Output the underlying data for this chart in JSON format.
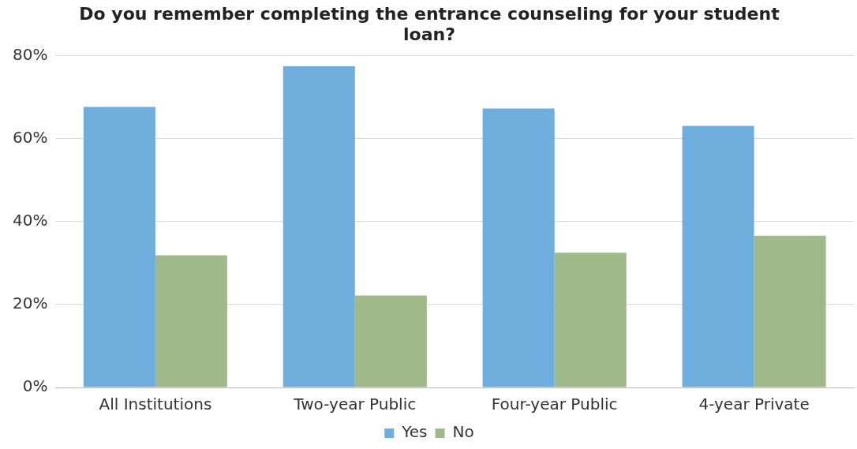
{
  "chart_data": {
    "type": "bar",
    "title": "Do you remember completing the entrance counseling for your student loan?",
    "categories": [
      "All Institutions",
      "Two-year Public",
      "Four-year Public",
      "4-year Private"
    ],
    "series": [
      {
        "name": "Yes",
        "color": "#6faddc",
        "values": [
          67.7,
          77.5,
          67.3,
          63.1
        ]
      },
      {
        "name": "No",
        "color": "#9fba88",
        "values": [
          31.9,
          22.2,
          32.5,
          36.6
        ]
      }
    ],
    "ylim": [
      0,
      80
    ],
    "yticks": [
      {
        "value": 0,
        "label": "0%"
      },
      {
        "value": 20,
        "label": "20%"
      },
      {
        "value": 40,
        "label": "40%"
      },
      {
        "value": 60,
        "label": "60%"
      },
      {
        "value": 80,
        "label": "80%"
      }
    ],
    "grid": "y",
    "legend": "bottom"
  }
}
